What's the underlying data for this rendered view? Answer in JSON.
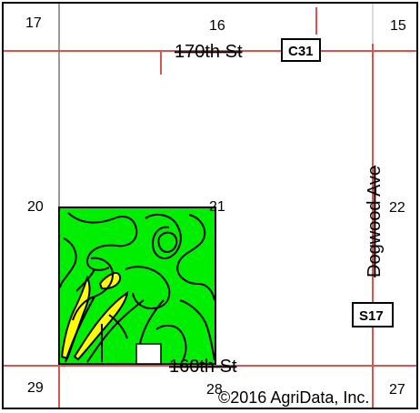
{
  "map": {
    "sections": [
      "17",
      "16",
      "15",
      "20",
      "21",
      "22",
      "29",
      "28",
      "27"
    ],
    "roads": {
      "north": "170th St",
      "south": "160th St",
      "east": "Dogwood Ave"
    },
    "shields": {
      "north": "C31",
      "east": "S17"
    },
    "copyright": "©2016 AgriData, Inc.",
    "colors": {
      "background": "#ffffff",
      "frame": "#000000",
      "road_line": "#d9534f",
      "section_line": "#9a9a9a",
      "field_green": "#00ee00",
      "field_yellow": "#ffff00",
      "soil_boundary": "#000000"
    }
  }
}
